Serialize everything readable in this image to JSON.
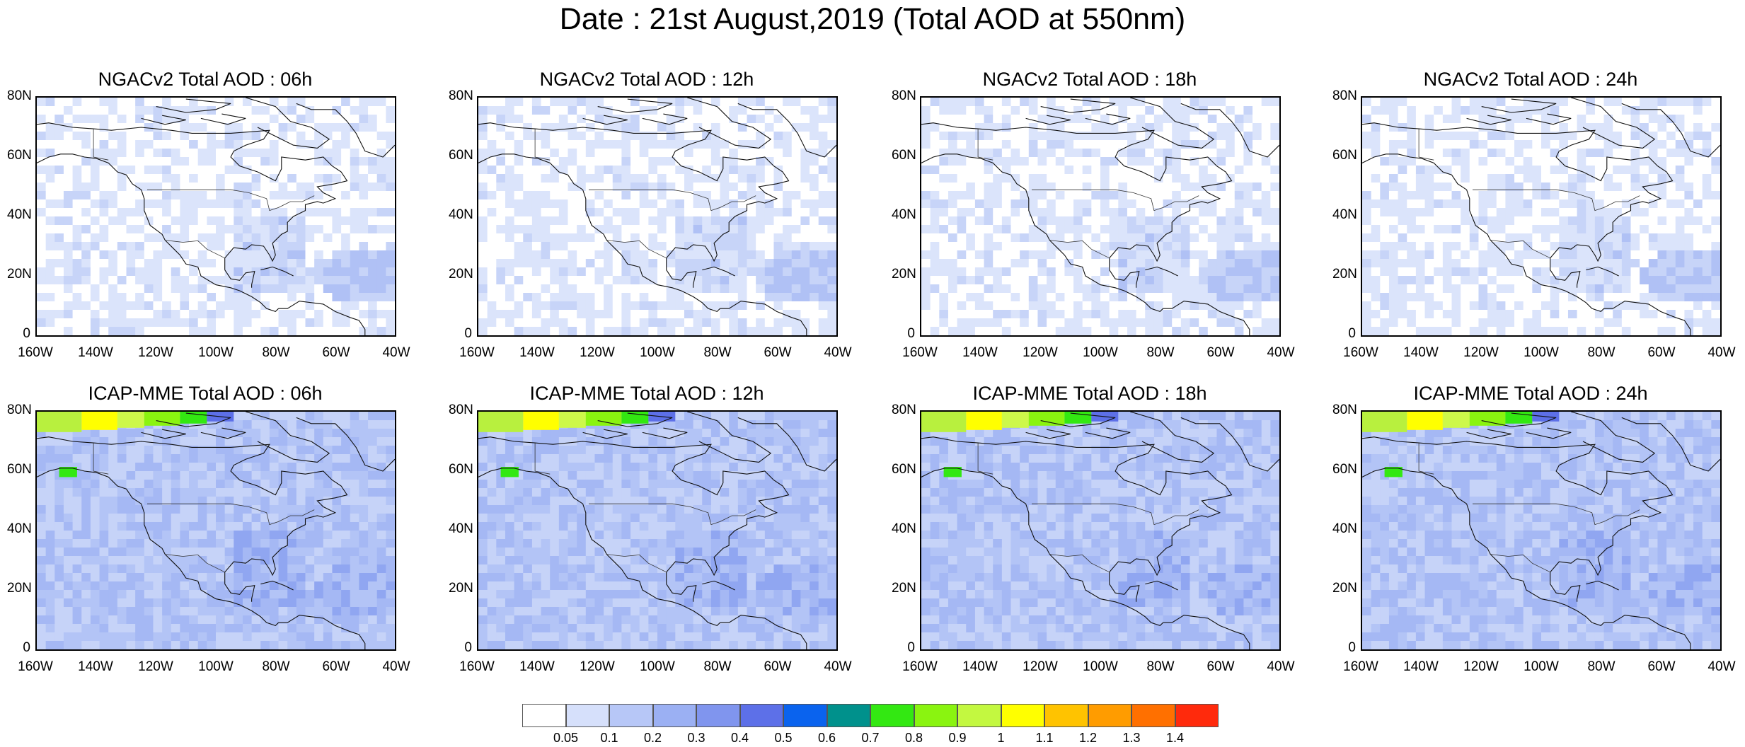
{
  "title": "Date : 21st August,2019 (Total AOD at 550nm)",
  "latitude_labels": [
    "80N",
    "60N",
    "40N",
    "20N",
    "0"
  ],
  "longitude_labels": [
    "160W",
    "140W",
    "120W",
    "100W",
    "80W",
    "60W",
    "40W"
  ],
  "panels": [
    {
      "title": "NGACv2 Total AOD : 06h",
      "model": "NGACv2",
      "forecast_hour": "06h"
    },
    {
      "title": "NGACv2 Total AOD : 12h",
      "model": "NGACv2",
      "forecast_hour": "12h"
    },
    {
      "title": "NGACv2 Total AOD : 18h",
      "model": "NGACv2",
      "forecast_hour": "18h"
    },
    {
      "title": "NGACv2 Total AOD : 24h",
      "model": "NGACv2",
      "forecast_hour": "24h"
    },
    {
      "title": "ICAP-MME Total AOD : 06h",
      "model": "ICAP-MME",
      "forecast_hour": "06h"
    },
    {
      "title": "ICAP-MME Total AOD : 12h",
      "model": "ICAP-MME",
      "forecast_hour": "12h"
    },
    {
      "title": "ICAP-MME Total AOD : 18h",
      "model": "ICAP-MME",
      "forecast_hour": "18h"
    },
    {
      "title": "ICAP-MME Total AOD : 24h",
      "model": "ICAP-MME",
      "forecast_hour": "24h"
    }
  ],
  "colorbar": {
    "labels": [
      "0.05",
      "0.1",
      "0.2",
      "0.3",
      "0.4",
      "0.5",
      "0.6",
      "0.7",
      "0.8",
      "0.9",
      "1",
      "1.1",
      "1.2",
      "1.3",
      "1.4"
    ],
    "colors": [
      "#ffffff",
      "#d6e0fb",
      "#b7c7f7",
      "#9bb0f3",
      "#8095ee",
      "#5d70e8",
      "#0a63ee",
      "#00918c",
      "#33e812",
      "#8af410",
      "#c3f840",
      "#ffff00",
      "#ffc300",
      "#ff9c00",
      "#ff7000",
      "#ff2a0c"
    ]
  }
}
